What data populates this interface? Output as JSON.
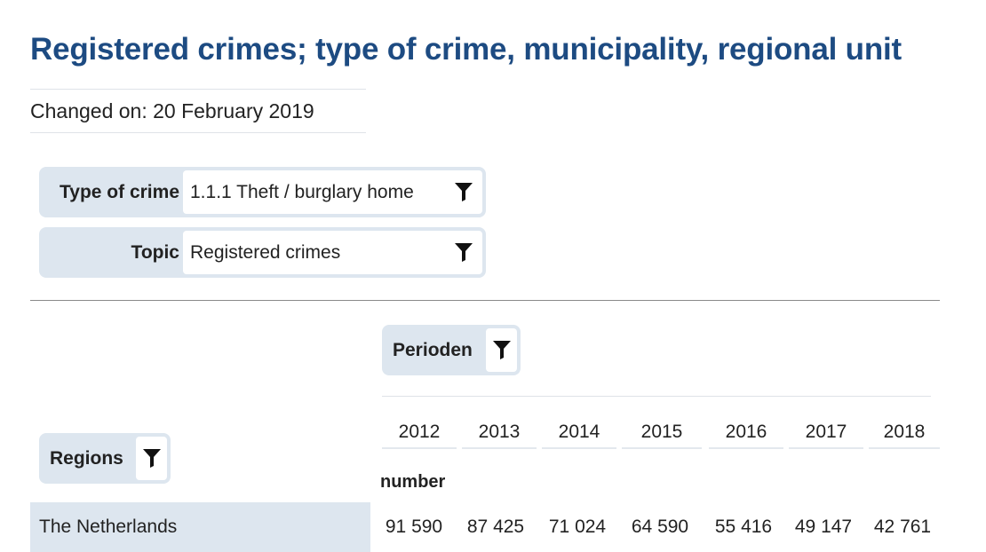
{
  "page": {
    "title": "Registered crimes; type of crime, municipality, regional unit",
    "changed_on": "Changed on: 20 February 2019"
  },
  "filters": [
    {
      "label": "Type of crime",
      "value": "1.1.1 Theft / burglary home",
      "icon": "funnel-icon"
    },
    {
      "label": "Topic",
      "value": "Registered crimes",
      "icon": "funnel-icon"
    }
  ],
  "table": {
    "column_dimension": "Perioden",
    "row_dimension": "Regions",
    "unit": "number",
    "columns": [
      "2012",
      "2013",
      "2014",
      "2015",
      "2016",
      "2017",
      "2018"
    ],
    "rows": [
      {
        "label": "The Netherlands",
        "values": [
          "91 590",
          "87 425",
          "71 024",
          "64 590",
          "55 416",
          "49 147",
          "42 761"
        ]
      }
    ]
  },
  "colors": {
    "title": "#1d4b82",
    "filter_background": "#dde6ef"
  }
}
